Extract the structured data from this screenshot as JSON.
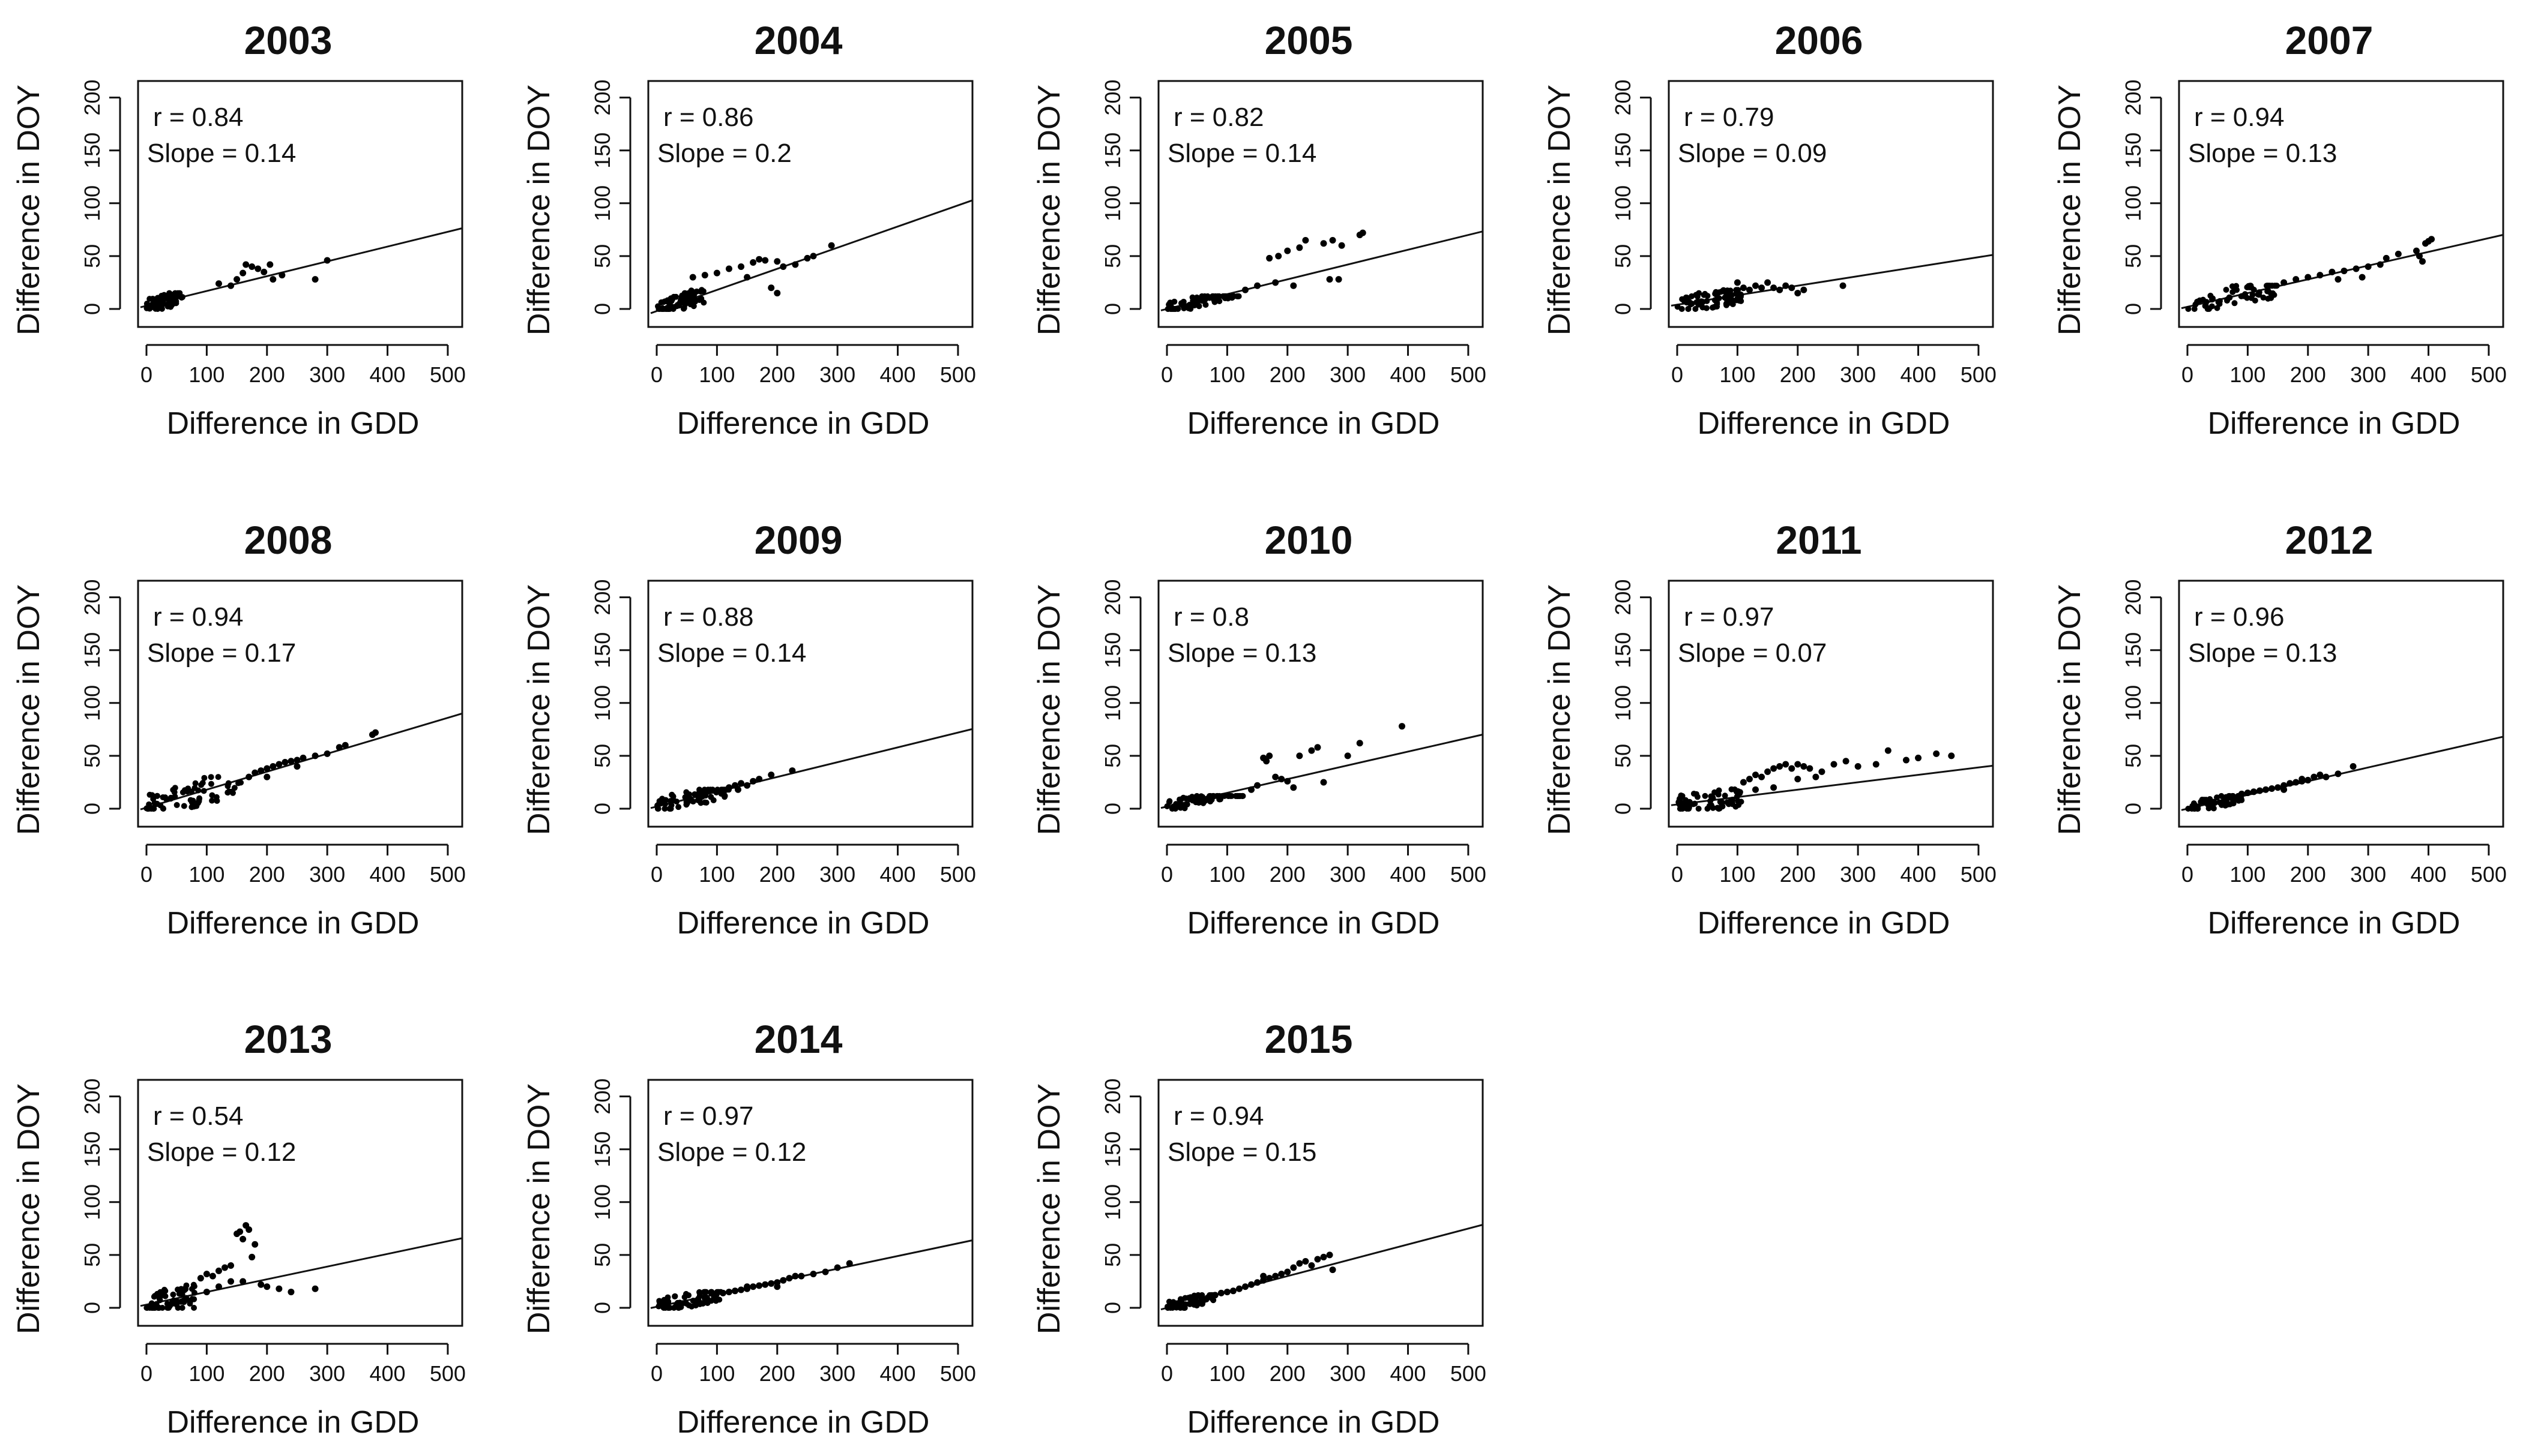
{
  "chart_data": {
    "type": "scatter",
    "figure_description": "Panel grid of scatter plots with linear fit, one per year",
    "xlabel": "Difference in GDD",
    "ylabel": "Difference in DOY",
    "xlim": [
      0,
      520
    ],
    "ylim": [
      0,
      210
    ],
    "xticks": [
      0,
      100,
      200,
      300,
      400,
      500
    ],
    "yticks": [
      0,
      50,
      100,
      150,
      200
    ],
    "r_prefix": "r = ",
    "slope_prefix": "Slope = ",
    "panels": [
      {
        "title": "2003",
        "r": "0.84",
        "slope": "0.14",
        "intercept": 3,
        "xmax": 305,
        "cluster": [
          0,
          60,
          0,
          15
        ],
        "points": [
          [
            150,
            28
          ],
          [
            160,
            34
          ],
          [
            165,
            42
          ],
          [
            175,
            40
          ],
          [
            185,
            38
          ],
          [
            195,
            35
          ],
          [
            205,
            42
          ],
          [
            210,
            28
          ],
          [
            225,
            32
          ],
          [
            280,
            28
          ],
          [
            300,
            46
          ],
          [
            140,
            22
          ],
          [
            120,
            24
          ]
        ]
      },
      {
        "title": "2004",
        "r": "0.86",
        "slope": "0.2",
        "intercept": -2,
        "xmax": 290,
        "cluster": [
          0,
          80,
          0,
          18
        ],
        "points": [
          [
            60,
            30
          ],
          [
            80,
            32
          ],
          [
            100,
            34
          ],
          [
            120,
            38
          ],
          [
            140,
            40
          ],
          [
            160,
            44
          ],
          [
            170,
            47
          ],
          [
            180,
            46
          ],
          [
            200,
            45
          ],
          [
            210,
            40
          ],
          [
            230,
            42
          ],
          [
            250,
            48
          ],
          [
            260,
            50
          ],
          [
            290,
            60
          ],
          [
            150,
            30
          ],
          [
            190,
            20
          ],
          [
            200,
            15
          ]
        ]
      },
      {
        "title": "2005",
        "r": "0.82",
        "slope": "0.14",
        "intercept": 0,
        "xmax": 325,
        "cluster": [
          0,
          120,
          0,
          12
        ],
        "points": [
          [
            130,
            18
          ],
          [
            150,
            22
          ],
          [
            170,
            48
          ],
          [
            185,
            50
          ],
          [
            200,
            55
          ],
          [
            220,
            58
          ],
          [
            230,
            65
          ],
          [
            260,
            62
          ],
          [
            275,
            65
          ],
          [
            290,
            60
          ],
          [
            320,
            70
          ],
          [
            325,
            72
          ],
          [
            270,
            28
          ],
          [
            285,
            28
          ],
          [
            180,
            25
          ],
          [
            210,
            22
          ]
        ]
      },
      {
        "title": "2006",
        "r": "0.79",
        "slope": "0.09",
        "intercept": 4,
        "xmax": 275,
        "cluster": [
          0,
          110,
          0,
          18
        ],
        "points": [
          [
            110,
            20
          ],
          [
            120,
            18
          ],
          [
            130,
            22
          ],
          [
            140,
            20
          ],
          [
            150,
            25
          ],
          [
            160,
            20
          ],
          [
            170,
            18
          ],
          [
            180,
            22
          ],
          [
            190,
            20
          ],
          [
            200,
            15
          ],
          [
            210,
            18
          ],
          [
            275,
            22
          ],
          [
            100,
            25
          ]
        ]
      },
      {
        "title": "2007",
        "r": "0.94",
        "slope": "0.13",
        "intercept": 2,
        "xmax": 410,
        "cluster": [
          0,
          150,
          0,
          22
        ],
        "points": [
          [
            160,
            25
          ],
          [
            180,
            28
          ],
          [
            200,
            30
          ],
          [
            220,
            32
          ],
          [
            240,
            35
          ],
          [
            260,
            36
          ],
          [
            280,
            38
          ],
          [
            300,
            40
          ],
          [
            320,
            42
          ],
          [
            330,
            48
          ],
          [
            350,
            52
          ],
          [
            380,
            55
          ],
          [
            390,
            45
          ],
          [
            395,
            62
          ],
          [
            400,
            64
          ],
          [
            405,
            66
          ],
          [
            385,
            50
          ],
          [
            290,
            30
          ],
          [
            250,
            28
          ]
        ]
      },
      {
        "title": "2008",
        "r": "0.94",
        "slope": "0.17",
        "intercept": 1,
        "xmax": 380,
        "cluster": [
          0,
          160,
          0,
          30
        ],
        "points": [
          [
            170,
            30
          ],
          [
            180,
            34
          ],
          [
            190,
            36
          ],
          [
            200,
            38
          ],
          [
            210,
            40
          ],
          [
            220,
            42
          ],
          [
            230,
            44
          ],
          [
            240,
            45
          ],
          [
            250,
            46
          ],
          [
            260,
            48
          ],
          [
            280,
            50
          ],
          [
            300,
            52
          ],
          [
            320,
            58
          ],
          [
            330,
            60
          ],
          [
            375,
            70
          ],
          [
            380,
            72
          ],
          [
            200,
            30
          ],
          [
            250,
            40
          ]
        ]
      },
      {
        "title": "2009",
        "r": "0.88",
        "slope": "0.14",
        "intercept": 2,
        "xmax": 225,
        "cluster": [
          0,
          120,
          0,
          18
        ],
        "points": [
          [
            120,
            20
          ],
          [
            130,
            22
          ],
          [
            140,
            24
          ],
          [
            150,
            22
          ],
          [
            160,
            26
          ],
          [
            170,
            28
          ],
          [
            190,
            32
          ],
          [
            225,
            36
          ],
          [
            110,
            15
          ],
          [
            135,
            18
          ]
        ]
      },
      {
        "title": "2010",
        "r": "0.8",
        "slope": "0.13",
        "intercept": 2,
        "xmax": 390,
        "cluster": [
          0,
          130,
          0,
          12
        ],
        "points": [
          [
            140,
            18
          ],
          [
            150,
            22
          ],
          [
            160,
            48
          ],
          [
            165,
            45
          ],
          [
            170,
            50
          ],
          [
            180,
            30
          ],
          [
            190,
            28
          ],
          [
            200,
            26
          ],
          [
            220,
            50
          ],
          [
            240,
            55
          ],
          [
            250,
            58
          ],
          [
            260,
            25
          ],
          [
            300,
            50
          ],
          [
            320,
            62
          ],
          [
            390,
            78
          ],
          [
            210,
            20
          ]
        ]
      },
      {
        "title": "2011",
        "r": "0.97",
        "slope": "0.07",
        "intercept": 4,
        "xmax": 455,
        "cluster": [
          0,
          110,
          0,
          20
        ],
        "points": [
          [
            110,
            25
          ],
          [
            120,
            28
          ],
          [
            130,
            32
          ],
          [
            140,
            30
          ],
          [
            150,
            35
          ],
          [
            160,
            38
          ],
          [
            170,
            40
          ],
          [
            180,
            42
          ],
          [
            190,
            38
          ],
          [
            200,
            42
          ],
          [
            210,
            40
          ],
          [
            220,
            38
          ],
          [
            240,
            35
          ],
          [
            260,
            42
          ],
          [
            280,
            45
          ],
          [
            300,
            40
          ],
          [
            330,
            42
          ],
          [
            350,
            55
          ],
          [
            380,
            46
          ],
          [
            400,
            48
          ],
          [
            430,
            52
          ],
          [
            455,
            50
          ],
          [
            160,
            20
          ],
          [
            200,
            28
          ],
          [
            230,
            30
          ],
          [
            130,
            18
          ]
        ]
      },
      {
        "title": "2012",
        "r": "0.96",
        "slope": "0.13",
        "intercept": 0,
        "xmax": 275,
        "cluster": [
          0,
          90,
          0,
          12
        ],
        "points": [
          [
            90,
            14
          ],
          [
            100,
            15
          ],
          [
            110,
            16
          ],
          [
            120,
            17
          ],
          [
            130,
            18
          ],
          [
            140,
            19
          ],
          [
            150,
            20
          ],
          [
            160,
            22
          ],
          [
            170,
            24
          ],
          [
            180,
            25
          ],
          [
            190,
            26
          ],
          [
            200,
            27
          ],
          [
            210,
            30
          ],
          [
            220,
            32
          ],
          [
            230,
            30
          ],
          [
            250,
            33
          ],
          [
            275,
            40
          ],
          [
            160,
            18
          ],
          [
            190,
            28
          ]
        ]
      },
      {
        "title": "2013",
        "r": "0.54",
        "slope": "0.12",
        "intercept": 3,
        "xmax": 285,
        "cluster": [
          0,
          80,
          0,
          28
        ],
        "points": [
          [
            90,
            28
          ],
          [
            100,
            32
          ],
          [
            110,
            30
          ],
          [
            120,
            35
          ],
          [
            130,
            38
          ],
          [
            140,
            40
          ],
          [
            150,
            70
          ],
          [
            155,
            72
          ],
          [
            160,
            65
          ],
          [
            165,
            78
          ],
          [
            170,
            74
          ],
          [
            175,
            48
          ],
          [
            180,
            60
          ],
          [
            190,
            22
          ],
          [
            200,
            20
          ],
          [
            220,
            18
          ],
          [
            240,
            15
          ],
          [
            280,
            18
          ],
          [
            120,
            20
          ],
          [
            140,
            25
          ],
          [
            160,
            25
          ],
          [
            100,
            15
          ]
        ]
      },
      {
        "title": "2014",
        "r": "0.97",
        "slope": "0.12",
        "intercept": 1,
        "xmax": 320,
        "cluster": [
          0,
          110,
          0,
          15
        ],
        "points": [
          [
            110,
            14
          ],
          [
            120,
            15
          ],
          [
            130,
            16
          ],
          [
            140,
            17
          ],
          [
            150,
            18
          ],
          [
            160,
            20
          ],
          [
            170,
            21
          ],
          [
            180,
            22
          ],
          [
            190,
            23
          ],
          [
            200,
            24
          ],
          [
            210,
            26
          ],
          [
            220,
            28
          ],
          [
            230,
            30
          ],
          [
            240,
            30
          ],
          [
            260,
            32
          ],
          [
            280,
            34
          ],
          [
            300,
            38
          ],
          [
            320,
            42
          ],
          [
            150,
            20
          ],
          [
            200,
            20
          ]
        ]
      },
      {
        "title": "2015",
        "r": "0.94",
        "slope": "0.15",
        "intercept": 0,
        "xmax": 275,
        "cluster": [
          0,
          80,
          0,
          12
        ],
        "points": [
          [
            80,
            12
          ],
          [
            90,
            14
          ],
          [
            100,
            15
          ],
          [
            110,
            16
          ],
          [
            120,
            18
          ],
          [
            130,
            20
          ],
          [
            140,
            22
          ],
          [
            150,
            24
          ],
          [
            160,
            26
          ],
          [
            170,
            28
          ],
          [
            180,
            30
          ],
          [
            190,
            32
          ],
          [
            200,
            34
          ],
          [
            210,
            38
          ],
          [
            220,
            42
          ],
          [
            230,
            44
          ],
          [
            240,
            40
          ],
          [
            250,
            46
          ],
          [
            260,
            48
          ],
          [
            270,
            50
          ],
          [
            275,
            36
          ],
          [
            160,
            30
          ]
        ]
      }
    ]
  }
}
